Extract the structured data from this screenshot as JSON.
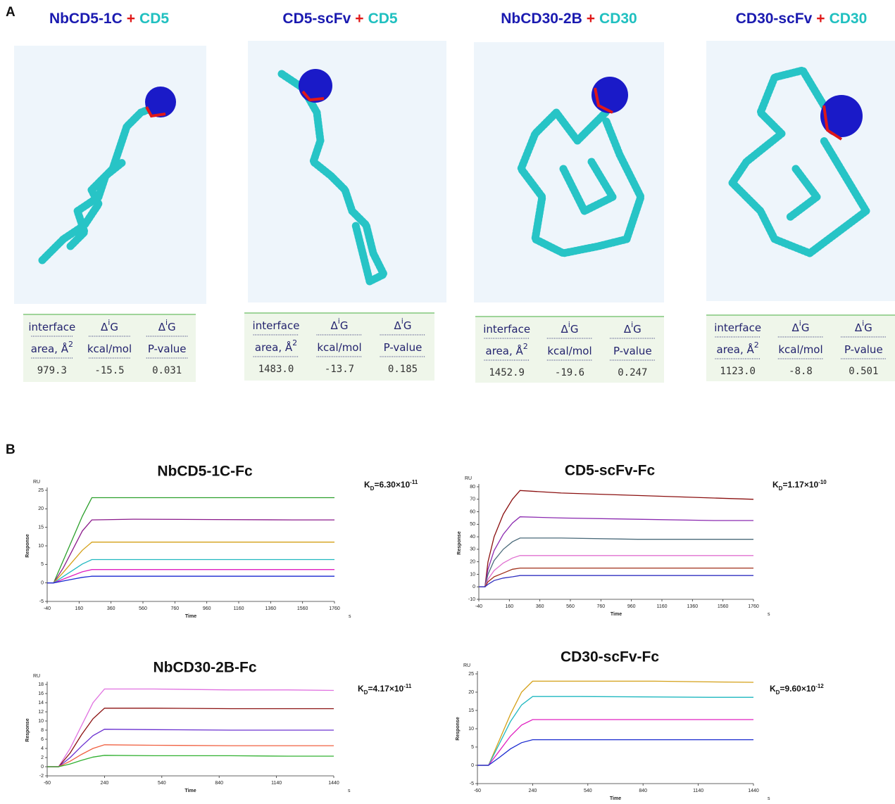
{
  "panel_a": {
    "label": "A",
    "table_header": [
      {
        "top": [
          "interface"
        ],
        "bottom": [
          "area, Å",
          "2"
        ]
      },
      {
        "top": [
          "Δ",
          "i",
          "G"
        ],
        "bottom": [
          "kcal/mol"
        ]
      },
      {
        "top": [
          "Δ",
          "i",
          "G"
        ],
        "bottom": [
          "P-value"
        ]
      }
    ],
    "complexes": [
      {
        "antibody": "NbCD5-1C",
        "plus": "+",
        "antigen": "CD5",
        "values": [
          "979.3",
          "-15.5",
          "0.031"
        ]
      },
      {
        "antibody": "CD5-scFv",
        "plus": "+",
        "antigen": "CD5",
        "values": [
          "1483.0",
          "-13.7",
          "0.185"
        ]
      },
      {
        "antibody": "NbCD30-2B",
        "plus": "+",
        "antigen": "CD30",
        "values": [
          "1452.9",
          "-19.6",
          "0.247"
        ]
      },
      {
        "antibody": "CD30-scFv",
        "plus": "+",
        "antigen": "CD30",
        "values": [
          "1123.0",
          "-8.8",
          "0.501"
        ]
      }
    ]
  },
  "panel_b_label": "B",
  "chart_data": [
    {
      "type": "line",
      "title": "NbCD5-1C-Fc",
      "y_unit": "RU",
      "ylabel": "Response",
      "xlabel": "Time",
      "x_unit": "s",
      "kd": {
        "symbol": "K",
        "subscript": "D",
        "text": "=6.30×10",
        "exponent": "-11"
      },
      "xlim": [
        -40,
        1760
      ],
      "xticks": [
        -40,
        160,
        360,
        560,
        760,
        960,
        1160,
        1360,
        1560,
        1760
      ],
      "ylim": [
        -5,
        25
      ],
      "yticks": [
        -5,
        0,
        5,
        10,
        15,
        20,
        25
      ],
      "x": [
        -40,
        0,
        60,
        120,
        180,
        240,
        500,
        1000,
        1500,
        1760
      ],
      "series": [
        {
          "color": "#2ca02c",
          "values": [
            0,
            0,
            6,
            12,
            18,
            23,
            23,
            23,
            23,
            23
          ]
        },
        {
          "color": "#8b1a8b",
          "values": [
            0,
            0,
            4,
            9,
            14,
            17,
            17.2,
            17.1,
            17,
            17
          ]
        },
        {
          "color": "#d4a017",
          "values": [
            0,
            0,
            2.8,
            5.8,
            8.8,
            11,
            11,
            11,
            11,
            11
          ]
        },
        {
          "color": "#20b8c0",
          "values": [
            0,
            0,
            1.7,
            3.4,
            5.1,
            6.3,
            6.3,
            6.3,
            6.3,
            6.3
          ]
        },
        {
          "color": "#e020c0",
          "values": [
            0,
            0,
            1,
            2,
            3,
            3.6,
            3.6,
            3.6,
            3.6,
            3.6
          ]
        },
        {
          "color": "#1a2ad0",
          "values": [
            0,
            0,
            0.5,
            1,
            1.5,
            1.8,
            1.8,
            1.8,
            1.8,
            1.8
          ]
        }
      ]
    },
    {
      "type": "line",
      "title": "CD5-scFv-Fc",
      "y_unit": "RU",
      "ylabel": "Response",
      "xlabel": "Time",
      "x_unit": "s",
      "kd": {
        "symbol": "K",
        "subscript": "D",
        "text": "=1.17×10",
        "exponent": "-10"
      },
      "xlim": [
        -40,
        1760
      ],
      "xticks": [
        -40,
        160,
        360,
        560,
        760,
        960,
        1160,
        1360,
        1560,
        1760
      ],
      "ylim": [
        -10,
        80
      ],
      "yticks": [
        -10,
        0,
        10,
        20,
        30,
        40,
        50,
        60,
        70,
        80
      ],
      "x": [
        -40,
        0,
        20,
        60,
        120,
        180,
        230,
        500,
        1000,
        1500,
        1760
      ],
      "series": [
        {
          "color": "#8b1010",
          "values": [
            0,
            0,
            20,
            40,
            58,
            70,
            77,
            75,
            73,
            71,
            70
          ]
        },
        {
          "color": "#8b2ab0",
          "values": [
            0,
            0,
            14,
            29,
            42,
            51,
            56,
            55,
            54,
            53,
            53
          ]
        },
        {
          "color": "#4a6a7a",
          "values": [
            0,
            0,
            10,
            21,
            30,
            36,
            39,
            39,
            38,
            38,
            38
          ]
        },
        {
          "color": "#e070d0",
          "values": [
            0,
            0,
            6,
            13,
            19,
            23,
            25,
            25,
            25,
            25,
            25
          ]
        },
        {
          "color": "#a0301a",
          "values": [
            0,
            0,
            4,
            8,
            11,
            14,
            15,
            15,
            15,
            15,
            15
          ]
        },
        {
          "color": "#3030c0",
          "values": [
            0,
            0,
            2,
            5,
            7,
            8,
            9,
            9,
            9,
            9,
            9
          ]
        }
      ]
    },
    {
      "type": "line",
      "title": "NbCD30-2B-Fc",
      "y_unit": "RU",
      "ylabel": "Response",
      "xlabel": "Time",
      "x_unit": "s",
      "kd": {
        "symbol": "K",
        "subscript": "D",
        "text": "=4.17×10",
        "exponent": "-11"
      },
      "xlim": [
        -60,
        1440
      ],
      "xticks": [
        -60,
        240,
        540,
        840,
        1140,
        1440
      ],
      "ylim": [
        -2,
        18
      ],
      "yticks": [
        -2,
        0,
        2,
        4,
        6,
        8,
        10,
        12,
        14,
        16,
        18
      ],
      "x": [
        -60,
        0,
        60,
        120,
        180,
        240,
        500,
        900,
        1200,
        1440
      ],
      "series": [
        {
          "color": "#e070e0",
          "values": [
            0,
            0,
            4,
            9,
            14,
            17,
            17,
            16.8,
            16.8,
            16.7
          ]
        },
        {
          "color": "#8b1010",
          "values": [
            0,
            0,
            3,
            7,
            10.5,
            12.8,
            12.8,
            12.7,
            12.7,
            12.7
          ]
        },
        {
          "color": "#6a30d0",
          "values": [
            0,
            0,
            2,
            4.5,
            6.8,
            8.2,
            8.1,
            8,
            8,
            8
          ]
        },
        {
          "color": "#f06040",
          "values": [
            0,
            0,
            1.2,
            2.7,
            4,
            4.8,
            4.7,
            4.6,
            4.6,
            4.6
          ]
        },
        {
          "color": "#30b030",
          "values": [
            0,
            0,
            0.6,
            1.4,
            2.1,
            2.5,
            2.4,
            2.4,
            2.3,
            2.3
          ]
        }
      ]
    },
    {
      "type": "line",
      "title": "CD30-scFv-Fc",
      "y_unit": "RU",
      "ylabel": "Response",
      "xlabel": "Time",
      "x_unit": "s",
      "kd": {
        "symbol": "K",
        "subscript": "D",
        "text": "=9.60×10",
        "exponent": "-12"
      },
      "xlim": [
        -60,
        1440
      ],
      "xticks": [
        -60,
        240,
        540,
        840,
        1140,
        1440
      ],
      "ylim": [
        -5,
        25
      ],
      "yticks": [
        -5,
        0,
        5,
        10,
        15,
        20,
        25
      ],
      "x": [
        -60,
        0,
        60,
        120,
        180,
        240,
        500,
        900,
        1200,
        1440
      ],
      "series": [
        {
          "color": "#d4a017",
          "values": [
            0,
            0,
            7,
            14,
            20,
            23,
            23,
            23,
            22.8,
            22.7
          ]
        },
        {
          "color": "#20b8c0",
          "values": [
            0,
            0,
            6,
            12,
            16.5,
            18.8,
            18.8,
            18.7,
            18.6,
            18.6
          ]
        },
        {
          "color": "#e020c0",
          "values": [
            0,
            0,
            4,
            8,
            11,
            12.5,
            12.5,
            12.5,
            12.5,
            12.5
          ]
        },
        {
          "color": "#1a2ad0",
          "values": [
            0,
            0,
            2.2,
            4.5,
            6.2,
            7,
            7,
            7,
            7,
            7
          ]
        }
      ]
    }
  ]
}
